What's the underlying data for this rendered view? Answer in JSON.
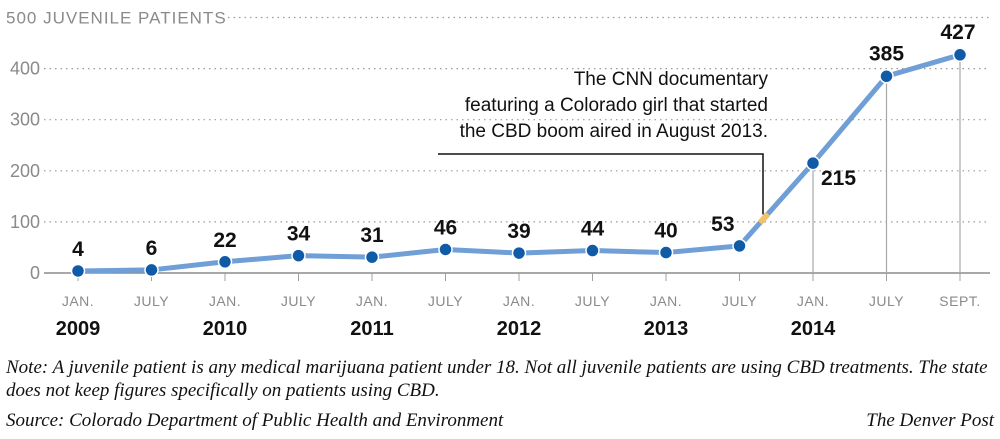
{
  "chart_data": {
    "type": "line",
    "y_title": "500 JUVENILE PATIENTS",
    "ylim": [
      0,
      500
    ],
    "y_ticks": [
      0,
      100,
      200,
      300,
      400
    ],
    "grid": true,
    "x_tick_labels": [
      "JAN.",
      "JULY",
      "JAN.",
      "JULY",
      "JAN.",
      "JULY",
      "JAN.",
      "JULY",
      "JAN.",
      "JULY",
      "JAN.",
      "JULY",
      "SEPT."
    ],
    "year_labels": [
      {
        "year": "2009",
        "tick_index": 0
      },
      {
        "year": "2010",
        "tick_index": 2
      },
      {
        "year": "2011",
        "tick_index": 4
      },
      {
        "year": "2012",
        "tick_index": 6
      },
      {
        "year": "2013",
        "tick_index": 8
      },
      {
        "year": "2014",
        "tick_index": 10
      }
    ],
    "x": [
      "Jan 2009",
      "Jul 2009",
      "Jan 2010",
      "Jul 2010",
      "Jan 2011",
      "Jul 2011",
      "Jan 2012",
      "Jul 2012",
      "Jan 2013",
      "Jul 2013",
      "Jan 2014",
      "Jul 2014",
      "Sep 2014"
    ],
    "values": [
      4,
      6,
      22,
      34,
      31,
      46,
      39,
      44,
      40,
      53,
      215,
      385,
      427
    ],
    "data_labels": [
      "4",
      "6",
      "22",
      "34",
      "31",
      "46",
      "39",
      "44",
      "40",
      "53",
      "215",
      "385",
      "427"
    ],
    "line_color": "#6f9fd6",
    "marker_color": "#0f5ba7",
    "highlight_color": "#f2c36b",
    "annotation": {
      "lines": [
        "The CNN documentary",
        "featuring a Colorado girl that started",
        "the CBD boom aired in August 2013."
      ],
      "date": "Aug 2013"
    }
  },
  "note": "Note: A juvenile patient is any medical marijuana patient under 18. Not all juvenile patients are using CBD treatments. The state does not keep figures specifically on patients using CBD.",
  "source": "Source: Colorado Department of Public Health and Environment",
  "credit": "The Denver Post"
}
